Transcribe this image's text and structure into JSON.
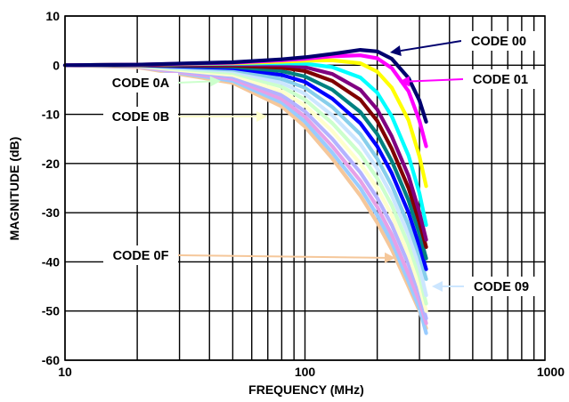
{
  "chart_data": {
    "type": "line",
    "xlabel": "FREQUENCY (MHz)",
    "ylabel": "MAGNITUDE (dB)",
    "x_scale": "log",
    "xlim": [
      10,
      1000
    ],
    "ylim": [
      -60,
      10
    ],
    "grid": true,
    "x_ticks": [
      10,
      100,
      1000
    ],
    "x_tick_labels": [
      "10",
      "100",
      "1000"
    ],
    "y_ticks": [
      10,
      0,
      -10,
      -20,
      -30,
      -40,
      -50,
      -60
    ],
    "y_tick_labels": [
      "10",
      "0",
      "-10",
      "-20",
      "-30",
      "-40",
      "-50",
      "-60"
    ],
    "series": [
      {
        "name": "CODE 00",
        "color": "#00006e",
        "x": [
          10,
          20,
          50,
          80,
          100,
          130,
          170,
          200,
          230,
          270,
          300,
          320
        ],
        "y": [
          0,
          0.1,
          0.6,
          1.2,
          1.6,
          2.3,
          3.1,
          2.8,
          1.3,
          -2.6,
          -7.2,
          -11.5
        ]
      },
      {
        "name": "CODE 01",
        "color": "#ff00ff",
        "x": [
          10,
          20,
          50,
          80,
          100,
          130,
          170,
          200,
          230,
          270,
          300,
          320
        ],
        "y": [
          0,
          0.1,
          0.5,
          1.0,
          1.3,
          1.8,
          2.0,
          1.4,
          -0.6,
          -5.3,
          -11.3,
          -16.5
        ]
      },
      {
        "name": "",
        "color": "#ffff00",
        "x": [
          10,
          20,
          50,
          80,
          100,
          130,
          170,
          200,
          230,
          270,
          300,
          320
        ],
        "y": [
          0,
          0.1,
          0.4,
          0.7,
          0.9,
          1.0,
          0.4,
          -1.3,
          -4.6,
          -11.2,
          -18.6,
          -24.6
        ]
      },
      {
        "name": "",
        "color": "#00ffff",
        "x": [
          10,
          20,
          50,
          80,
          100,
          130,
          170,
          200,
          230,
          270,
          300,
          320
        ],
        "y": [
          0,
          0.1,
          0.3,
          0.4,
          0.3,
          -0.4,
          -2.5,
          -5.6,
          -10.4,
          -18.4,
          -26.1,
          -32.5
        ]
      },
      {
        "name": "",
        "color": "#800080",
        "x": [
          10,
          20,
          50,
          80,
          100,
          130,
          170,
          200,
          230,
          270,
          300,
          320
        ],
        "y": [
          0,
          0.1,
          0.1,
          0.0,
          -0.4,
          -1.8,
          -5.0,
          -9.0,
          -14.5,
          -22.5,
          -30.0,
          -35.5
        ]
      },
      {
        "name": "",
        "color": "#800000",
        "x": [
          10,
          20,
          50,
          80,
          100,
          130,
          170,
          200,
          230,
          270,
          300,
          320
        ],
        "y": [
          0,
          0.0,
          -0.1,
          -0.5,
          -1.2,
          -3.2,
          -7.0,
          -11.3,
          -17.0,
          -25.0,
          -32.0,
          -37.0
        ]
      },
      {
        "name": "",
        "color": "#008080",
        "x": [
          10,
          20,
          50,
          80,
          100,
          130,
          170,
          200,
          230,
          270,
          300,
          320
        ],
        "y": [
          0,
          0.0,
          -0.3,
          -1.2,
          -2.3,
          -5.0,
          -9.5,
          -14.0,
          -19.5,
          -27.5,
          -34.3,
          -39.3
        ]
      },
      {
        "name": "",
        "color": "#0000ff",
        "x": [
          10,
          20,
          50,
          80,
          100,
          130,
          170,
          200,
          230,
          270,
          300,
          320
        ],
        "y": [
          0,
          0.0,
          -0.6,
          -2.0,
          -3.4,
          -6.8,
          -11.8,
          -16.5,
          -22.0,
          -30.0,
          -36.8,
          -41.5
        ]
      },
      {
        "name": "",
        "color": "#87ceeb",
        "x": [
          10,
          20,
          50,
          80,
          100,
          130,
          170,
          200,
          230,
          270,
          300,
          320
        ],
        "y": [
          0,
          -0.1,
          -0.9,
          -2.8,
          -4.6,
          -8.5,
          -14.0,
          -19.0,
          -24.5,
          -32.5,
          -38.8,
          -43.5
        ]
      },
      {
        "name": "CODE 09",
        "color": "#cce6ff",
        "x": [
          10,
          20,
          50,
          80,
          100,
          130,
          170,
          200,
          230,
          270,
          300,
          320
        ],
        "y": [
          0,
          -0.1,
          -1.2,
          -3.6,
          -5.8,
          -10.2,
          -16.0,
          -21.0,
          -26.5,
          -34.5,
          -41.0,
          -46.8
        ]
      },
      {
        "name": "CODE 0A",
        "color": "#ccffcc",
        "x": [
          10,
          20,
          50,
          80,
          100,
          130,
          170,
          200,
          230,
          270,
          300,
          320
        ],
        "y": [
          0,
          -0.1,
          -1.6,
          -4.4,
          -7.0,
          -11.8,
          -18.0,
          -23.0,
          -28.5,
          -36.5,
          -43.0,
          -48.5
        ]
      },
      {
        "name": "CODE 0B",
        "color": "#ffffcc",
        "x": [
          10,
          20,
          50,
          80,
          100,
          130,
          170,
          200,
          230,
          270,
          300,
          320
        ],
        "y": [
          0,
          -0.2,
          -2.0,
          -5.3,
          -8.2,
          -13.4,
          -20.0,
          -25.0,
          -30.5,
          -38.5,
          -45.0,
          -50.0
        ]
      },
      {
        "name": "",
        "color": "#b3b3ff",
        "x": [
          10,
          20,
          50,
          80,
          100,
          130,
          170,
          200,
          230,
          270,
          300,
          320
        ],
        "y": [
          0,
          -0.2,
          -2.4,
          -6.1,
          -9.4,
          -15.0,
          -21.8,
          -27.0,
          -32.5,
          -40.5,
          -46.5,
          -51.5
        ]
      },
      {
        "name": "",
        "color": "#e6a0e6",
        "x": [
          10,
          20,
          50,
          80,
          100,
          130,
          170,
          200,
          230,
          270,
          300,
          320
        ],
        "y": [
          0,
          -0.3,
          -2.8,
          -6.9,
          -10.5,
          -16.5,
          -23.5,
          -28.8,
          -34.5,
          -42.5,
          -48.0,
          -52.5
        ]
      },
      {
        "name": "",
        "color": "#99ccff",
        "x": [
          10,
          20,
          50,
          80,
          100,
          130,
          170,
          200,
          230,
          270,
          300,
          320
        ],
        "y": [
          0,
          -0.3,
          -3.2,
          -7.6,
          -11.5,
          -17.8,
          -25.0,
          -30.5,
          -36.0,
          -44.0,
          -49.5,
          -54.5
        ]
      },
      {
        "name": "CODE 0F",
        "color": "#f5c79a",
        "x": [
          10,
          20,
          50,
          80,
          100,
          130,
          170,
          200,
          230,
          270,
          300,
          320
        ],
        "y": [
          0,
          -0.4,
          -3.6,
          -8.4,
          -12.5,
          -19.0,
          -26.5,
          -32.0,
          -37.5,
          -45.0,
          -50.0,
          -53.5
        ]
      }
    ],
    "annotations": [
      {
        "text": "CODE 00",
        "color": "#00006e",
        "points_to": "CODE 00"
      },
      {
        "text": "CODE 01",
        "color": "#ff00ff",
        "points_to": "CODE 01"
      },
      {
        "text": "CODE 0A",
        "color": "#ccffcc",
        "points_to": "CODE 0A"
      },
      {
        "text": "CODE 0B",
        "color": "#ffffcc",
        "points_to": "CODE 0B"
      },
      {
        "text": "CODE 0F",
        "color": "#f5c79a",
        "points_to": "CODE 0F"
      },
      {
        "text": "CODE 09",
        "color": "#cce6ff",
        "points_to": "CODE 09"
      }
    ]
  }
}
